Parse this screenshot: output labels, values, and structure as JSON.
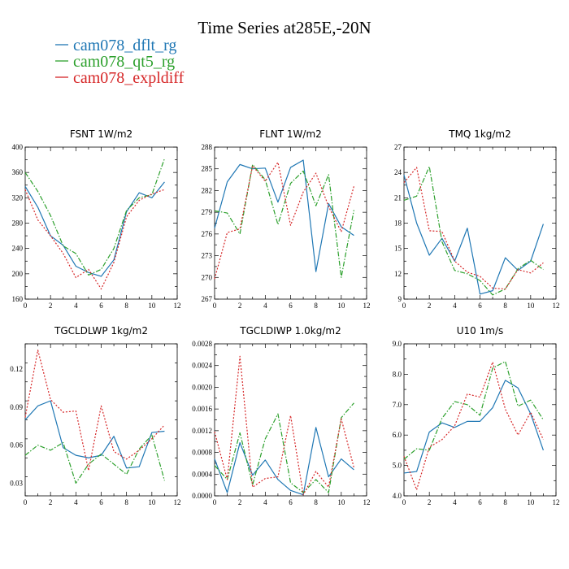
{
  "title": "Time Series at285E,-20N",
  "legend": [
    {
      "label": "cam078_dflt_rg",
      "color": "#1f77b4"
    },
    {
      "label": "cam078_qt5_rg",
      "color": "#2ca02c"
    },
    {
      "label": "cam078_expldiff",
      "color": "#d62728"
    }
  ],
  "chart_data": [
    {
      "type": "line",
      "title": "FSNT   1W/m2",
      "x": [
        0,
        1,
        2,
        3,
        4,
        5,
        6,
        7,
        8,
        9,
        10,
        11
      ],
      "xlim": [
        0,
        12
      ],
      "ylim": [
        160,
        400
      ],
      "xticks": [
        0,
        2,
        4,
        6,
        8,
        10,
        12
      ],
      "yticks": [
        160,
        200,
        240,
        280,
        320,
        360,
        400
      ],
      "ytick_labels": [
        "160",
        "200",
        "240",
        "280",
        "320",
        "360",
        "400"
      ],
      "series": [
        {
          "name": "cam078_dflt_rg",
          "values": [
            338,
            305,
            260,
            245,
            212,
            202,
            196,
            222,
            298,
            328,
            320,
            345
          ]
        },
        {
          "name": "cam078_qt5_rg",
          "values": [
            360,
            330,
            292,
            244,
            232,
            198,
            207,
            240,
            300,
            320,
            325,
            382
          ]
        },
        {
          "name": "cam078_expldiff",
          "values": [
            333,
            285,
            260,
            232,
            194,
            207,
            176,
            218,
            290,
            316,
            326,
            333
          ]
        }
      ]
    },
    {
      "type": "line",
      "title": "FLNT   1W/m2",
      "x": [
        0,
        1,
        2,
        3,
        4,
        5,
        6,
        7,
        8,
        9,
        10,
        11
      ],
      "xlim": [
        0,
        12
      ],
      "ylim": [
        267,
        288
      ],
      "xticks": [
        0,
        2,
        4,
        6,
        8,
        10,
        12
      ],
      "yticks": [
        267,
        270,
        273,
        276,
        279,
        282,
        285,
        288
      ],
      "ytick_labels": [
        "267",
        "270",
        "273",
        "276",
        "279",
        "282",
        "285",
        "288"
      ],
      "series": [
        {
          "name": "cam078_dflt_rg",
          "values": [
            276.8,
            283.2,
            285.6,
            285,
            285.1,
            280.4,
            285.2,
            286.2,
            270.8,
            280.2,
            277,
            275.8
          ]
        },
        {
          "name": "cam078_qt5_rg",
          "values": [
            279.2,
            278.9,
            276,
            285.6,
            283.5,
            277.3,
            283,
            284.7,
            279.9,
            284.2,
            270,
            279.3
          ]
        },
        {
          "name": "cam078_expldiff",
          "values": [
            269.8,
            276.2,
            276.7,
            285.4,
            283.3,
            285.9,
            277.2,
            281.8,
            284.4,
            279.8,
            276.3,
            282.6
          ]
        }
      ]
    },
    {
      "type": "line",
      "title": "TMQ   1kg/m2",
      "x": [
        0,
        1,
        2,
        3,
        4,
        5,
        6,
        7,
        8,
        9,
        10,
        11
      ],
      "xlim": [
        0,
        12
      ],
      "ylim": [
        9,
        27
      ],
      "xticks": [
        0,
        2,
        4,
        6,
        8,
        10,
        12
      ],
      "yticks": [
        9,
        12,
        15,
        18,
        21,
        24,
        27
      ],
      "ytick_labels": [
        "9",
        "12",
        "15",
        "18",
        "21",
        "24",
        "27"
      ],
      "series": [
        {
          "name": "cam078_dflt_rg",
          "values": [
            23.7,
            18,
            14.2,
            16.2,
            13.5,
            17.4,
            9.6,
            10,
            13.9,
            12.4,
            13.5,
            17.9
          ]
        },
        {
          "name": "cam078_qt5_rg",
          "values": [
            20.7,
            21.2,
            24.7,
            15.8,
            12.4,
            12,
            11.2,
            9.5,
            10.2,
            12.6,
            13.6,
            12.5
          ]
        },
        {
          "name": "cam078_expldiff",
          "values": [
            22.8,
            24.6,
            17.1,
            17,
            13.5,
            12.2,
            11.7,
            10.3,
            10.2,
            12.5,
            12.1,
            13.3
          ]
        }
      ]
    },
    {
      "type": "line",
      "title": "TGCLDLWP   1kg/m2",
      "x": [
        0,
        1,
        2,
        3,
        4,
        5,
        6,
        7,
        8,
        9,
        10,
        11
      ],
      "xlim": [
        0,
        12
      ],
      "ylim": [
        0.02,
        0.14
      ],
      "xticks": [
        0,
        2,
        4,
        6,
        8,
        10,
        12
      ],
      "yticks": [
        0.03,
        0.06,
        0.09,
        0.12
      ],
      "ytick_labels": [
        "0.03",
        "0.06",
        "0.09",
        "0.12"
      ],
      "series": [
        {
          "name": "cam078_dflt_rg",
          "values": [
            0.08,
            0.091,
            0.095,
            0.058,
            0.052,
            0.05,
            0.052,
            0.067,
            0.042,
            0.043,
            0.07,
            0.071
          ]
        },
        {
          "name": "cam078_qt5_rg",
          "values": [
            0.052,
            0.06,
            0.056,
            0.062,
            0.03,
            0.045,
            0.053,
            0.045,
            0.037,
            0.057,
            0.068,
            0.032
          ]
        },
        {
          "name": "cam078_expldiff",
          "values": [
            0.082,
            0.135,
            0.096,
            0.086,
            0.087,
            0.04,
            0.091,
            0.055,
            0.049,
            0.056,
            0.065,
            0.076
          ]
        }
      ]
    },
    {
      "type": "line",
      "title": "TGCLDIWP   1.0kg/m2",
      "x": [
        0,
        1,
        2,
        3,
        4,
        5,
        6,
        7,
        8,
        9,
        10,
        11
      ],
      "xlim": [
        0,
        12
      ],
      "ylim": [
        0,
        0.0028
      ],
      "xticks": [
        0,
        2,
        4,
        6,
        8,
        10,
        12
      ],
      "yticks": [
        0,
        0.0004,
        0.0008,
        0.0012,
        0.0016,
        0.002,
        0.0024,
        0.0028
      ],
      "ytick_labels": [
        "0.0000",
        "0.0004",
        "0.0008",
        "0.0012",
        "0.0016",
        "0.0020",
        "0.0024",
        "0.0028"
      ],
      "series": [
        {
          "name": "cam078_dflt_rg",
          "values": [
            0.00068,
            6e-05,
            0.00098,
            0.00038,
            0.00066,
            0.0003,
            0.0001,
            2e-05,
            0.00126,
            0.00035,
            0.00068,
            0.00048
          ]
        },
        {
          "name": "cam078_qt5_rg",
          "values": [
            0.00056,
            0.0003,
            0.00116,
            0.0002,
            0.00105,
            0.00151,
            0.00024,
            6e-05,
            0.0003,
            6e-05,
            0.00144,
            0.00171
          ]
        },
        {
          "name": "cam078_expldiff",
          "values": [
            0.00118,
            0.0003,
            0.00257,
            0.00016,
            0.00032,
            0.00035,
            0.00148,
            2e-05,
            0.00045,
            0.00016,
            0.00142,
            0.00052
          ]
        }
      ]
    },
    {
      "type": "line",
      "title": "U10   1m/s",
      "x": [
        0,
        1,
        2,
        3,
        4,
        5,
        6,
        7,
        8,
        9,
        10,
        11
      ],
      "xlim": [
        0,
        12
      ],
      "ylim": [
        4,
        9
      ],
      "xticks": [
        0,
        2,
        4,
        6,
        8,
        10,
        12
      ],
      "yticks": [
        4,
        5,
        6,
        7,
        8,
        9
      ],
      "ytick_labels": [
        "4.0",
        "5.0",
        "6.0",
        "7.0",
        "8.0",
        "9.0"
      ],
      "series": [
        {
          "name": "cam078_dflt_rg",
          "values": [
            4.75,
            4.8,
            6.1,
            6.4,
            6.25,
            6.45,
            6.45,
            6.9,
            7.8,
            7.55,
            6.7,
            5.5
          ]
        },
        {
          "name": "cam078_qt5_rg",
          "values": [
            5.2,
            5.55,
            5.5,
            6.55,
            7.1,
            7.0,
            6.65,
            8.2,
            8.42,
            6.95,
            7.15,
            6.5
          ]
        },
        {
          "name": "cam078_expldiff",
          "values": [
            5.3,
            4.2,
            5.6,
            5.85,
            6.3,
            7.35,
            7.25,
            8.4,
            6.85,
            6.0,
            6.75,
            5.85
          ]
        }
      ]
    }
  ]
}
